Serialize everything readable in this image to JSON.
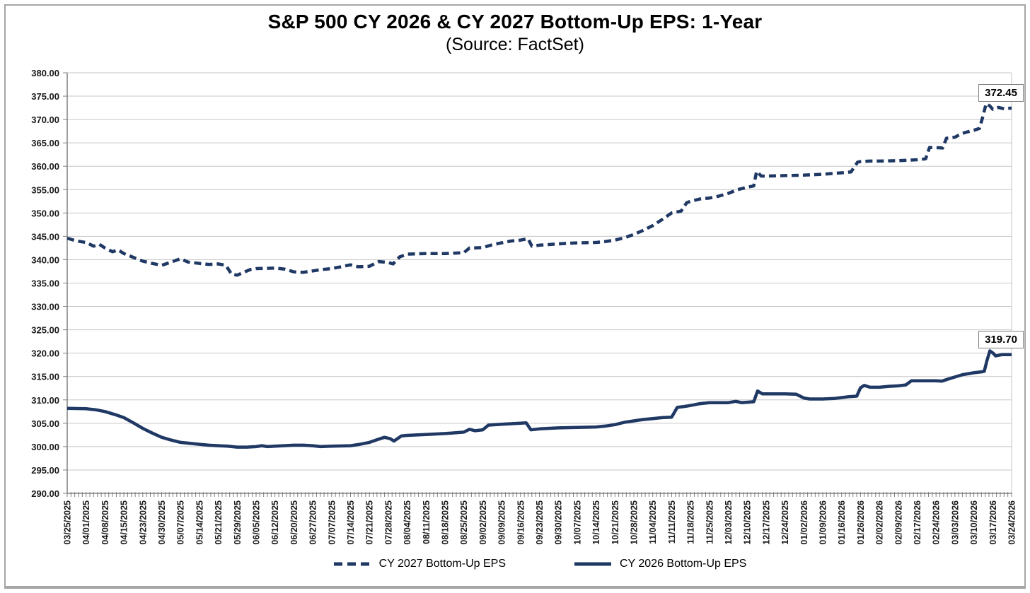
{
  "chart_data": {
    "type": "line",
    "title": "S&P 500 CY 2026 & CY 2027 Bottom-Up EPS: 1-Year",
    "subtitle": "(Source: FactSet)",
    "xlabel": "",
    "ylabel": "",
    "ylim": [
      290,
      380
    ],
    "ytick_step": 5,
    "grid": true,
    "legend_position": "bottom",
    "line_color": "#1f3864",
    "grid_color": "#c6c6c6",
    "axis_color": "#808080",
    "categories": [
      "03/25/2025",
      "04/01/2025",
      "04/08/2025",
      "04/15/2025",
      "04/23/2025",
      "04/30/2025",
      "05/07/2025",
      "05/14/2025",
      "05/21/2025",
      "05/29/2025",
      "06/05/2025",
      "06/12/2025",
      "06/20/2025",
      "06/27/2025",
      "07/07/2025",
      "07/14/2025",
      "07/21/2025",
      "07/28/2025",
      "08/04/2025",
      "08/11/2025",
      "08/18/2025",
      "08/25/2025",
      "09/02/2025",
      "09/09/2025",
      "09/16/2025",
      "09/23/2025",
      "09/30/2025",
      "10/07/2025",
      "10/14/2025",
      "10/21/2025",
      "10/28/2025",
      "11/04/2025",
      "11/11/2025",
      "11/18/2025",
      "11/25/2025",
      "12/03/2025",
      "12/10/2025",
      "12/17/2025",
      "12/24/2025",
      "01/02/2026",
      "01/09/2026",
      "01/16/2026",
      "01/26/2026",
      "02/02/2026",
      "02/09/2026",
      "02/17/2026",
      "02/24/2026",
      "03/03/2026",
      "03/10/2026",
      "03/17/2026",
      "03/24/2026"
    ],
    "series": [
      {
        "name": "CY 2027 Bottom-Up EPS",
        "dash": true,
        "end_label": "372.45",
        "end_value": 372.45,
        "points": [
          [
            0,
            344.6
          ],
          [
            0.5,
            344.0
          ],
          [
            1,
            343.7
          ],
          [
            1.4,
            342.9
          ],
          [
            1.7,
            343.3
          ],
          [
            2,
            342.5
          ],
          [
            2.4,
            341.7
          ],
          [
            2.7,
            342.1
          ],
          [
            3,
            341.3
          ],
          [
            3.5,
            340.5
          ],
          [
            4,
            339.7
          ],
          [
            4.5,
            339.2
          ],
          [
            5,
            338.8
          ],
          [
            5.5,
            339.5
          ],
          [
            6,
            340.2
          ],
          [
            6.4,
            339.5
          ],
          [
            7,
            339.2
          ],
          [
            7.5,
            339.0
          ],
          [
            8,
            339.1
          ],
          [
            8.4,
            338.8
          ],
          [
            8.7,
            336.9
          ],
          [
            9,
            336.7
          ],
          [
            9.4,
            337.4
          ],
          [
            9.7,
            337.9
          ],
          [
            10,
            338.1
          ],
          [
            11,
            338.2
          ],
          [
            11.5,
            338.0
          ],
          [
            12,
            337.4
          ],
          [
            12.5,
            337.3
          ],
          [
            13,
            337.6
          ],
          [
            13.5,
            337.9
          ],
          [
            14,
            338.1
          ],
          [
            14.5,
            338.5
          ],
          [
            15,
            338.9
          ],
          [
            15.4,
            338.5
          ],
          [
            16,
            338.6
          ],
          [
            16.5,
            339.6
          ],
          [
            17,
            339.4
          ],
          [
            17.25,
            339.1
          ],
          [
            17.6,
            340.6
          ],
          [
            18,
            341.2
          ],
          [
            19,
            341.3
          ],
          [
            20,
            341.3
          ],
          [
            21,
            341.5
          ],
          [
            21.3,
            342.5
          ],
          [
            22,
            342.6
          ],
          [
            22.5,
            343.2
          ],
          [
            23,
            343.6
          ],
          [
            23.5,
            344.0
          ],
          [
            24,
            344.2
          ],
          [
            24.4,
            344.5
          ],
          [
            24.6,
            342.9
          ],
          [
            25,
            343.1
          ],
          [
            26,
            343.4
          ],
          [
            27,
            343.6
          ],
          [
            28,
            343.7
          ],
          [
            28.5,
            343.9
          ],
          [
            29,
            344.2
          ],
          [
            29.5,
            344.7
          ],
          [
            30,
            345.4
          ],
          [
            30.5,
            346.3
          ],
          [
            31,
            347.3
          ],
          [
            31.5,
            348.6
          ],
          [
            32,
            350.0
          ],
          [
            32.5,
            350.4
          ],
          [
            32.8,
            352.2
          ],
          [
            33,
            352.5
          ],
          [
            33.5,
            353.0
          ],
          [
            34,
            353.2
          ],
          [
            34.5,
            353.6
          ],
          [
            35,
            354.2
          ],
          [
            35.5,
            355.0
          ],
          [
            36,
            355.5
          ],
          [
            36.35,
            355.8
          ],
          [
            36.5,
            358.9
          ],
          [
            36.75,
            357.9
          ],
          [
            37,
            357.9
          ],
          [
            38,
            358.0
          ],
          [
            39,
            358.1
          ],
          [
            40,
            358.3
          ],
          [
            41,
            358.6
          ],
          [
            41.5,
            358.8
          ],
          [
            41.85,
            360.9
          ],
          [
            42,
            361.0
          ],
          [
            42.5,
            361.1
          ],
          [
            43,
            361.1
          ],
          [
            44,
            361.2
          ],
          [
            45,
            361.4
          ],
          [
            45.45,
            361.6
          ],
          [
            45.65,
            364.0
          ],
          [
            46,
            364.0
          ],
          [
            46.35,
            363.9
          ],
          [
            46.55,
            366.0
          ],
          [
            47,
            366.2
          ],
          [
            47.3,
            366.9
          ],
          [
            47.6,
            367.3
          ],
          [
            48,
            367.7
          ],
          [
            48.3,
            368.1
          ],
          [
            48.5,
            371.0
          ],
          [
            48.65,
            373.4
          ],
          [
            48.85,
            372.9
          ],
          [
            49,
            372.2
          ],
          [
            49.3,
            372.6
          ],
          [
            49.6,
            372.3
          ],
          [
            50,
            372.45
          ]
        ]
      },
      {
        "name": "CY 2026 Bottom-Up EPS",
        "dash": false,
        "end_label": "319.70",
        "end_value": 319.7,
        "points": [
          [
            0,
            308.2
          ],
          [
            1,
            308.1
          ],
          [
            1.5,
            307.9
          ],
          [
            2,
            307.5
          ],
          [
            2.5,
            306.9
          ],
          [
            3,
            306.2
          ],
          [
            3.5,
            305.1
          ],
          [
            4,
            303.9
          ],
          [
            4.5,
            302.9
          ],
          [
            5,
            302.0
          ],
          [
            5.5,
            301.4
          ],
          [
            6,
            300.9
          ],
          [
            6.5,
            300.7
          ],
          [
            7,
            300.5
          ],
          [
            7.5,
            300.3
          ],
          [
            8,
            300.2
          ],
          [
            8.5,
            300.1
          ],
          [
            9,
            299.9
          ],
          [
            9.5,
            299.9
          ],
          [
            10,
            300.0
          ],
          [
            10.3,
            300.2
          ],
          [
            10.6,
            300.0
          ],
          [
            11,
            300.1
          ],
          [
            12,
            300.3
          ],
          [
            12.5,
            300.3
          ],
          [
            13,
            300.2
          ],
          [
            13.4,
            300.0
          ],
          [
            14,
            300.1
          ],
          [
            15,
            300.2
          ],
          [
            15.5,
            300.5
          ],
          [
            16,
            300.9
          ],
          [
            16.5,
            301.6
          ],
          [
            16.8,
            302.0
          ],
          [
            17.1,
            301.7
          ],
          [
            17.3,
            301.2
          ],
          [
            17.7,
            302.3
          ],
          [
            18,
            302.4
          ],
          [
            19,
            302.6
          ],
          [
            20,
            302.8
          ],
          [
            21,
            303.1
          ],
          [
            21.3,
            303.7
          ],
          [
            21.6,
            303.4
          ],
          [
            22,
            303.6
          ],
          [
            22.3,
            304.6
          ],
          [
            23,
            304.8
          ],
          [
            23.5,
            304.9
          ],
          [
            24,
            305.0
          ],
          [
            24.3,
            305.1
          ],
          [
            24.55,
            303.6
          ],
          [
            25,
            303.8
          ],
          [
            26,
            304.0
          ],
          [
            27,
            304.1
          ],
          [
            28,
            304.2
          ],
          [
            28.5,
            304.4
          ],
          [
            29,
            304.7
          ],
          [
            29.5,
            305.2
          ],
          [
            30,
            305.5
          ],
          [
            30.5,
            305.8
          ],
          [
            31,
            306.0
          ],
          [
            31.5,
            306.2
          ],
          [
            32,
            306.3
          ],
          [
            32.3,
            308.4
          ],
          [
            32.7,
            308.6
          ],
          [
            33,
            308.8
          ],
          [
            33.5,
            309.2
          ],
          [
            34,
            309.4
          ],
          [
            35,
            309.4
          ],
          [
            35.4,
            309.7
          ],
          [
            35.7,
            309.4
          ],
          [
            36,
            309.5
          ],
          [
            36.35,
            309.6
          ],
          [
            36.55,
            311.9
          ],
          [
            36.8,
            311.3
          ],
          [
            37,
            311.3
          ],
          [
            38,
            311.3
          ],
          [
            38.6,
            311.2
          ],
          [
            39,
            310.4
          ],
          [
            39.3,
            310.2
          ],
          [
            40,
            310.2
          ],
          [
            40.6,
            310.3
          ],
          [
            41,
            310.5
          ],
          [
            41.4,
            310.7
          ],
          [
            41.8,
            310.8
          ],
          [
            42,
            312.6
          ],
          [
            42.2,
            313.1
          ],
          [
            42.5,
            312.7
          ],
          [
            43,
            312.7
          ],
          [
            43.5,
            312.9
          ],
          [
            44,
            313.0
          ],
          [
            44.4,
            313.2
          ],
          [
            44.7,
            314.1
          ],
          [
            45,
            314.1
          ],
          [
            46,
            314.1
          ],
          [
            46.3,
            314.0
          ],
          [
            46.6,
            314.4
          ],
          [
            47,
            314.9
          ],
          [
            47.4,
            315.4
          ],
          [
            48,
            315.8
          ],
          [
            48.4,
            316.0
          ],
          [
            48.55,
            316.1
          ],
          [
            48.7,
            318.5
          ],
          [
            48.85,
            320.5
          ],
          [
            49.05,
            319.9
          ],
          [
            49.15,
            319.4
          ],
          [
            49.5,
            319.7
          ],
          [
            50,
            319.7
          ]
        ]
      }
    ]
  }
}
